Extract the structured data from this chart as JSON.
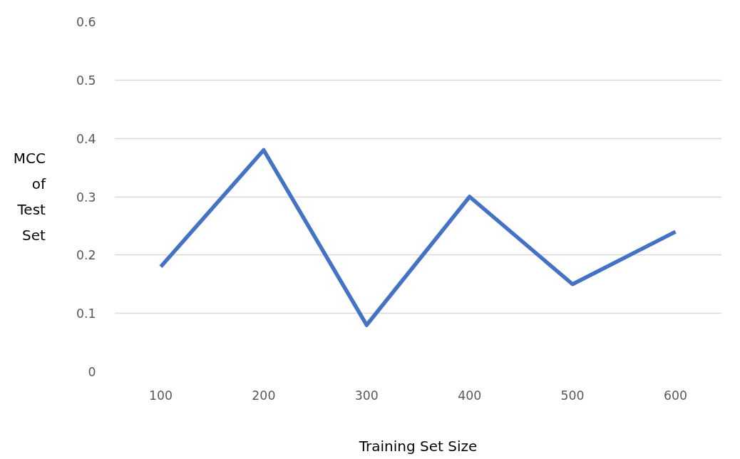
{
  "chart_data": {
    "type": "line",
    "xlabel": "Training Set Size",
    "ylabel": "MCC of Test Set",
    "categories": [
      "100",
      "200",
      "300",
      "400",
      "500",
      "600"
    ],
    "series": [
      {
        "color": "#4472c4",
        "values": [
          0.18,
          0.38,
          0.08,
          0.3,
          0.15,
          0.24
        ]
      }
    ],
    "ylim": [
      0,
      0.6
    ],
    "yticks": [
      0,
      0.1,
      0.2,
      0.3,
      0.4,
      0.5,
      0.6
    ],
    "grid": "y",
    "marker": "none",
    "line_style": "solid"
  }
}
